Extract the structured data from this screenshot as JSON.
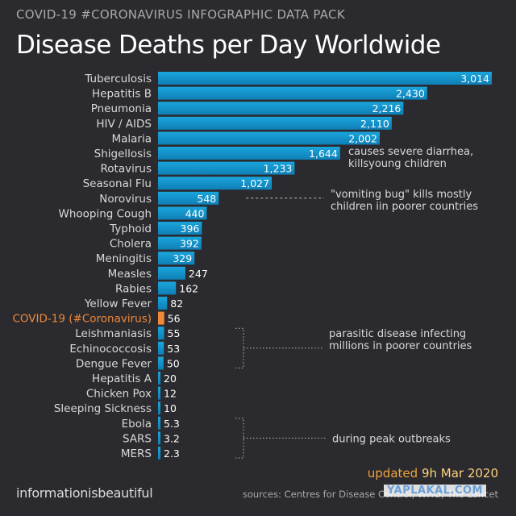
{
  "header": {
    "pack_title": "COVID-19 #CORONAVIRUS INFOGRAPHIC DATA PACK",
    "title": "Disease Deaths per Day Worldwide"
  },
  "footer": {
    "brand": "informationisbeautiful",
    "updated_prefix": "updated ",
    "updated_date": "9h Mar 2020",
    "sources": "sources: Centres for Disease Control, WHO, The Lancet",
    "watermark": "YAPLAKAL.COM"
  },
  "colors": {
    "bar_top": "#1aa5dc",
    "bar_bottom": "#0f7fb6",
    "highlight": "#f08a3a",
    "background": "#2b2a2e"
  },
  "chart_data": {
    "type": "bar",
    "orientation": "horizontal",
    "title": "Disease Deaths per Day Worldwide",
    "categories": [
      "Tuberculosis",
      "Hepatitis B",
      "Pneumonia",
      "HIV / AIDS",
      "Malaria",
      "Shigellosis",
      "Rotavirus",
      "Seasonal Flu",
      "Norovirus",
      "Whooping Cough",
      "Typhoid",
      "Cholera",
      "Meningitis",
      "Measles",
      "Rabies",
      "Yellow Fever",
      "COVID-19 (#Coronavirus)",
      "Leishmaniasis",
      "Echinococcosis",
      "Dengue Fever",
      "Hepatitis A",
      "Chicken Pox",
      "Sleeping Sickness",
      "Ebola",
      "SARS",
      "MERS"
    ],
    "values": [
      3014,
      2430,
      2216,
      2110,
      2002,
      1644,
      1233,
      1027,
      548,
      440,
      396,
      392,
      329,
      247,
      162,
      82,
      56,
      55,
      53,
      50,
      20,
      12,
      10,
      5.3,
      3.2,
      2.3
    ],
    "value_labels": [
      "3,014",
      "2,430",
      "2,216",
      "2,110",
      "2,002",
      "1,644",
      "1,233",
      "1,027",
      "548",
      "440",
      "396",
      "392",
      "329",
      "247",
      "162",
      "82",
      "56",
      "55",
      "53",
      "50",
      "20",
      "12",
      "10",
      "5.3",
      "3.2",
      "2.3"
    ],
    "highlight_category": "COVID-19 (#Coronavirus)",
    "xlim": [
      0,
      3014
    ],
    "grid": false,
    "annotations": [
      {
        "lines": [
          "causes severe diarrhea,",
          "killsyoung children"
        ],
        "from": "Shigellosis",
        "to": "Rotavirus",
        "style": "none"
      },
      {
        "lines": [
          "\"vomiting bug\" kills mostly",
          "children iin poorer countries"
        ],
        "from": "Norovirus",
        "to": "Norovirus",
        "style": "dashed-line"
      },
      {
        "lines": [
          "parasitic disease infecting",
          "millions in poorer countries"
        ],
        "from": "Leishmaniasis",
        "to": "Dengue Fever",
        "style": "dotted-bracket"
      },
      {
        "lines": [
          "during peak outbreaks"
        ],
        "from": "Ebola",
        "to": "MERS",
        "style": "dotted-bracket"
      }
    ]
  }
}
